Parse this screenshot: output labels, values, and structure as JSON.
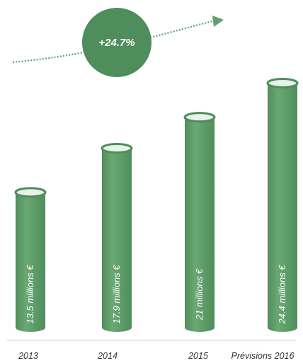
{
  "chart_data": {
    "type": "bar",
    "categories": [
      "2013",
      "2014",
      "2015",
      "Prévisions 2016"
    ],
    "values": [
      13.5,
      17.9,
      21,
      24.4
    ],
    "bar_labels": [
      "13.5 millions €",
      "17.9 millions €",
      "21 millions €",
      "24.4 millions €"
    ],
    "unit": "millions €",
    "growth": "+24.7%",
    "title": "",
    "xlabel": "",
    "ylabel": "",
    "grid": false,
    "legend": "none"
  },
  "colors": {
    "bar": "#5f9f6c",
    "bar_dark": "#4f8d5c",
    "bar_top": "#e8f2e8",
    "growth_circle": "#4f8d5c",
    "arrow": "#5f9f6c",
    "baseline": "#cfcfcf"
  }
}
